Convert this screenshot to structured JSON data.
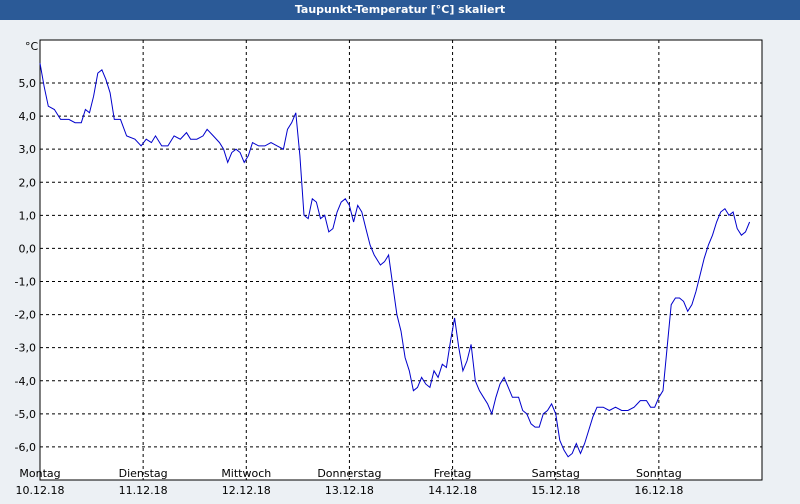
{
  "window": {
    "title": "Taupunkt-Temperatur [°C] skaliert"
  },
  "chart_data": {
    "type": "line",
    "title": "Taupunkt-Temperatur [°C] skaliert",
    "ylabel": "°C",
    "xlabel": "",
    "ylim": [
      -7.0,
      6.3
    ],
    "xlim": [
      0,
      7
    ],
    "y_ticks": [
      5.0,
      4.0,
      3.0,
      2.0,
      1.0,
      0.0,
      -1.0,
      -2.0,
      -3.0,
      -4.0,
      -5.0,
      -6.0
    ],
    "y_tick_labels": [
      "5,0",
      "4,0",
      "3,0",
      "2,0",
      "1,0",
      "0,0",
      "-1,0",
      "-2,0",
      "-3,0",
      "-4,0",
      "-5,0",
      "-6,0"
    ],
    "days": [
      {
        "weekday": "Montag",
        "date": "10.12.18"
      },
      {
        "weekday": "Dienstag",
        "date": "11.12.18"
      },
      {
        "weekday": "Mittwoch",
        "date": "12.12.18"
      },
      {
        "weekday": "Donnerstag",
        "date": "13.12.18"
      },
      {
        "weekday": "Freitag",
        "date": "14.12.18"
      },
      {
        "weekday": "Samstag",
        "date": "15.12.18"
      },
      {
        "weekday": "Sonntag",
        "date": "16.12.18"
      }
    ],
    "grid": true,
    "series": [
      {
        "color": "#0000cc",
        "points": [
          [
            0.0,
            5.6
          ],
          [
            0.04,
            4.9
          ],
          [
            0.08,
            4.3
          ],
          [
            0.14,
            4.2
          ],
          [
            0.2,
            3.9
          ],
          [
            0.28,
            3.9
          ],
          [
            0.34,
            3.8
          ],
          [
            0.4,
            3.8
          ],
          [
            0.44,
            4.2
          ],
          [
            0.48,
            4.1
          ],
          [
            0.52,
            4.6
          ],
          [
            0.56,
            5.3
          ],
          [
            0.6,
            5.4
          ],
          [
            0.64,
            5.1
          ],
          [
            0.68,
            4.7
          ],
          [
            0.72,
            3.9
          ],
          [
            0.78,
            3.9
          ],
          [
            0.84,
            3.4
          ],
          [
            0.92,
            3.3
          ],
          [
            0.98,
            3.1
          ],
          [
            1.03,
            3.3
          ],
          [
            1.08,
            3.2
          ],
          [
            1.12,
            3.4
          ],
          [
            1.18,
            3.1
          ],
          [
            1.24,
            3.1
          ],
          [
            1.3,
            3.4
          ],
          [
            1.36,
            3.3
          ],
          [
            1.42,
            3.5
          ],
          [
            1.46,
            3.3
          ],
          [
            1.52,
            3.3
          ],
          [
            1.58,
            3.4
          ],
          [
            1.62,
            3.6
          ],
          [
            1.68,
            3.4
          ],
          [
            1.74,
            3.2
          ],
          [
            1.78,
            3.0
          ],
          [
            1.82,
            2.6
          ],
          [
            1.86,
            2.9
          ],
          [
            1.9,
            3.0
          ],
          [
            1.94,
            2.9
          ],
          [
            1.98,
            2.6
          ],
          [
            2.02,
            2.8
          ],
          [
            2.06,
            3.2
          ],
          [
            2.12,
            3.1
          ],
          [
            2.18,
            3.1
          ],
          [
            2.24,
            3.2
          ],
          [
            2.3,
            3.1
          ],
          [
            2.36,
            3.0
          ],
          [
            2.4,
            3.6
          ],
          [
            2.44,
            3.8
          ],
          [
            2.48,
            4.1
          ],
          [
            2.52,
            2.8
          ],
          [
            2.56,
            1.0
          ],
          [
            2.6,
            0.9
          ],
          [
            2.64,
            1.5
          ],
          [
            2.68,
            1.4
          ],
          [
            2.72,
            0.9
          ],
          [
            2.76,
            1.0
          ],
          [
            2.8,
            0.5
          ],
          [
            2.84,
            0.6
          ],
          [
            2.88,
            1.1
          ],
          [
            2.92,
            1.4
          ],
          [
            2.96,
            1.5
          ],
          [
            3.0,
            1.3
          ],
          [
            3.04,
            0.8
          ],
          [
            3.08,
            1.3
          ],
          [
            3.12,
            1.1
          ],
          [
            3.16,
            0.6
          ],
          [
            3.2,
            0.1
          ],
          [
            3.24,
            -0.2
          ],
          [
            3.3,
            -0.5
          ],
          [
            3.34,
            -0.4
          ],
          [
            3.38,
            -0.2
          ],
          [
            3.42,
            -1.1
          ],
          [
            3.46,
            -2.0
          ],
          [
            3.5,
            -2.5
          ],
          [
            3.54,
            -3.3
          ],
          [
            3.58,
            -3.7
          ],
          [
            3.62,
            -4.3
          ],
          [
            3.66,
            -4.2
          ],
          [
            3.7,
            -3.9
          ],
          [
            3.74,
            -4.1
          ],
          [
            3.78,
            -4.2
          ],
          [
            3.82,
            -3.7
          ],
          [
            3.86,
            -3.9
          ],
          [
            3.9,
            -3.5
          ],
          [
            3.94,
            -3.6
          ],
          [
            3.98,
            -2.8
          ],
          [
            4.02,
            -2.1
          ],
          [
            4.06,
            -3.0
          ],
          [
            4.1,
            -3.7
          ],
          [
            4.14,
            -3.4
          ],
          [
            4.18,
            -2.9
          ],
          [
            4.22,
            -4.0
          ],
          [
            4.26,
            -4.3
          ],
          [
            4.3,
            -4.5
          ],
          [
            4.34,
            -4.7
          ],
          [
            4.38,
            -5.0
          ],
          [
            4.42,
            -4.5
          ],
          [
            4.46,
            -4.1
          ],
          [
            4.5,
            -3.9
          ],
          [
            4.54,
            -4.2
          ],
          [
            4.58,
            -4.5
          ],
          [
            4.64,
            -4.5
          ],
          [
            4.68,
            -4.9
          ],
          [
            4.72,
            -5.0
          ],
          [
            4.76,
            -5.3
          ],
          [
            4.8,
            -5.4
          ],
          [
            4.84,
            -5.4
          ],
          [
            4.88,
            -5.0
          ],
          [
            4.92,
            -4.9
          ],
          [
            4.96,
            -4.7
          ],
          [
            5.0,
            -5.0
          ],
          [
            5.04,
            -5.8
          ],
          [
            5.08,
            -6.1
          ],
          [
            5.12,
            -6.3
          ],
          [
            5.16,
            -6.2
          ],
          [
            5.2,
            -5.9
          ],
          [
            5.24,
            -6.2
          ],
          [
            5.28,
            -5.9
          ],
          [
            5.32,
            -5.5
          ],
          [
            5.36,
            -5.1
          ],
          [
            5.4,
            -4.8
          ],
          [
            5.46,
            -4.8
          ],
          [
            5.52,
            -4.9
          ],
          [
            5.58,
            -4.8
          ],
          [
            5.64,
            -4.9
          ],
          [
            5.7,
            -4.9
          ],
          [
            5.76,
            -4.8
          ],
          [
            5.82,
            -4.6
          ],
          [
            5.88,
            -4.6
          ],
          [
            5.92,
            -4.8
          ],
          [
            5.96,
            -4.8
          ],
          [
            6.0,
            -4.5
          ],
          [
            6.04,
            -4.3
          ],
          [
            6.08,
            -3.0
          ],
          [
            6.12,
            -1.7
          ],
          [
            6.16,
            -1.5
          ],
          [
            6.2,
            -1.5
          ],
          [
            6.24,
            -1.6
          ],
          [
            6.28,
            -1.9
          ],
          [
            6.32,
            -1.7
          ],
          [
            6.36,
            -1.3
          ],
          [
            6.4,
            -0.8
          ],
          [
            6.44,
            -0.3
          ],
          [
            6.48,
            0.1
          ],
          [
            6.52,
            0.4
          ],
          [
            6.56,
            0.8
          ],
          [
            6.6,
            1.1
          ],
          [
            6.64,
            1.2
          ],
          [
            6.68,
            1.0
          ],
          [
            6.72,
            1.1
          ],
          [
            6.76,
            0.6
          ],
          [
            6.8,
            0.4
          ],
          [
            6.84,
            0.5
          ],
          [
            6.88,
            0.8
          ]
        ]
      }
    ]
  }
}
